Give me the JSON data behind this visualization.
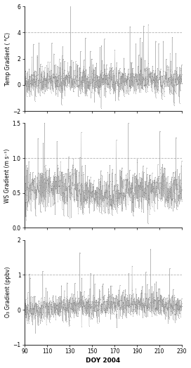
{
  "xlim": [
    90,
    230
  ],
  "xticks": [
    90,
    110,
    130,
    150,
    170,
    190,
    210,
    230
  ],
  "panel1": {
    "ylabel": "Temp Gradient ( °C)",
    "ylim": [
      -2,
      6
    ],
    "yticks": [
      -2,
      0,
      2,
      4,
      6
    ],
    "gridline_y": 4.0
  },
  "panel2": {
    "ylabel": "WS Gradient (m s⁻¹)",
    "ylim": [
      0.0,
      1.5
    ],
    "yticks": [
      0.0,
      0.5,
      1.0,
      1.5
    ],
    "gridline_y": 1.0
  },
  "panel3": {
    "ylabel": "O₃ Gradient (ppbv)",
    "ylim": [
      -1,
      2
    ],
    "yticks": [
      -1,
      0,
      1,
      2
    ],
    "gridline_y": 1.0
  },
  "xlabel": "DOY 2004",
  "marker_color": "#777777",
  "line_color": "#888888",
  "grid_color": "#aaaaaa",
  "background_color": "#ffffff",
  "marker_size": 1.0,
  "line_width": 0.3,
  "seed": 42
}
